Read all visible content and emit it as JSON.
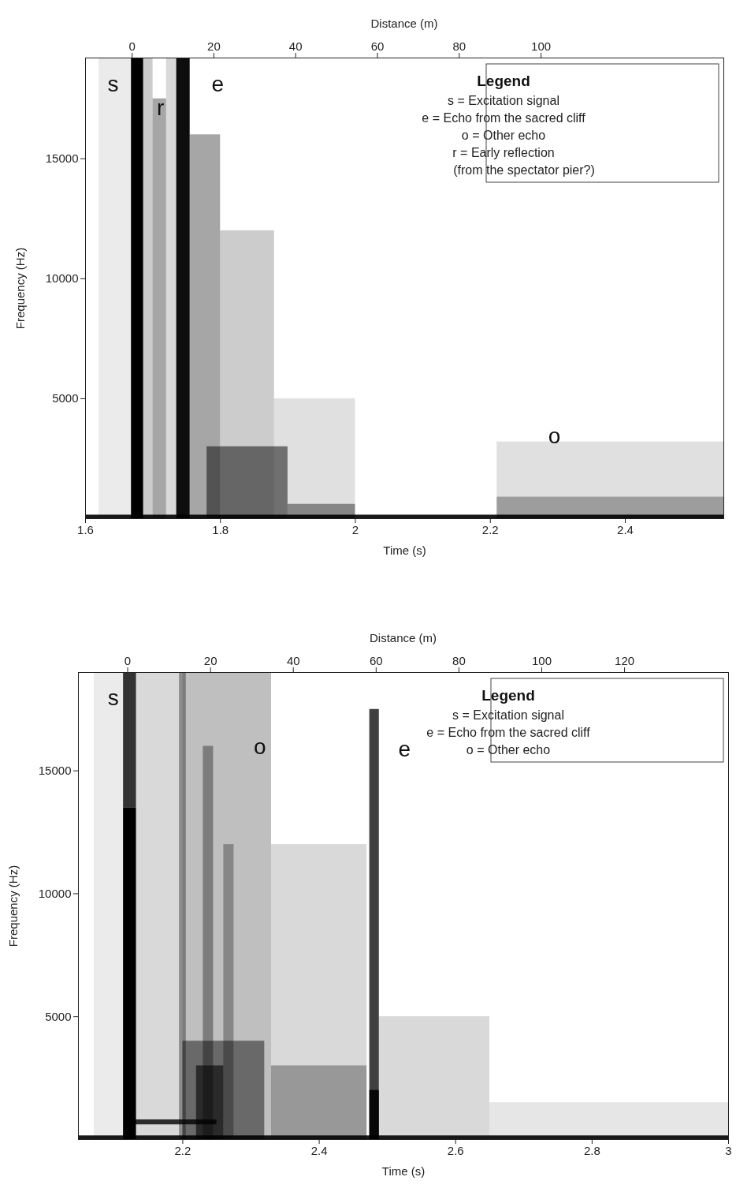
{
  "chart_data": [
    {
      "type": "spectrogram",
      "xlabel": "Time (s)",
      "ylabel": "Frequency (Hz)",
      "x2label": "Distance (m)",
      "xlim": [
        1.6,
        2.546
      ],
      "xticks": [
        1.6,
        1.8,
        2,
        2.2,
        2.4
      ],
      "ylim": [
        0,
        19200
      ],
      "yticks": [
        5000,
        10000,
        15000
      ],
      "x2lim": [
        -11.4,
        144.7
      ],
      "x2ticks": [
        0,
        20,
        40,
        60,
        80,
        100
      ],
      "grid": false,
      "legend": "top-right",
      "legend_title": "Legend",
      "legend_items": [
        [
          "s = Excitation signal"
        ],
        [
          "e = Echo from the sacred cliff"
        ],
        [
          "o = Other echo"
        ],
        [
          "r = Early reflection",
          "(from the spectator pier?)"
        ]
      ],
      "annotations": [
        {
          "text": "s",
          "x": 1.641,
          "y": 18100
        },
        {
          "text": "r",
          "x": 1.711,
          "y": 17100
        },
        {
          "text": "e",
          "x": 1.796,
          "y": 18100
        },
        {
          "text": "o",
          "x": 2.295,
          "y": 3450
        }
      ],
      "intensity_range": [
        0,
        1
      ],
      "cells": [
        {
          "t0": 1.62,
          "t1": 1.668,
          "f0": 0,
          "f1": 19200,
          "level": 0.08
        },
        {
          "t0": 1.668,
          "t1": 1.686,
          "f0": 0,
          "f1": 19200,
          "level": 1
        },
        {
          "t0": 1.686,
          "t1": 1.7,
          "f0": 0,
          "f1": 19200,
          "level": 0.2
        },
        {
          "t0": 1.7,
          "t1": 1.72,
          "f0": 0,
          "f1": 17500,
          "level": 0.35
        },
        {
          "t0": 1.72,
          "t1": 1.735,
          "f0": 0,
          "f1": 19200,
          "level": 0.15
        },
        {
          "t0": 1.735,
          "t1": 1.755,
          "f0": 0,
          "f1": 19200,
          "level": 0.95
        },
        {
          "t0": 1.755,
          "t1": 1.8,
          "f0": 0,
          "f1": 16000,
          "level": 0.35
        },
        {
          "t0": 1.8,
          "t1": 1.88,
          "f0": 0,
          "f1": 12000,
          "level": 0.2
        },
        {
          "t0": 1.78,
          "t1": 1.9,
          "f0": 0,
          "f1": 3000,
          "level": 0.5
        },
        {
          "t0": 1.88,
          "t1": 2.0,
          "f0": 0,
          "f1": 5000,
          "level": 0.12
        },
        {
          "t0": 1.9,
          "t1": 2.0,
          "f0": 0,
          "f1": 600,
          "level": 0.4
        },
        {
          "t0": 2.21,
          "t1": 2.546,
          "f0": 0,
          "f1": 3200,
          "level": 0.12
        },
        {
          "t0": 2.21,
          "t1": 2.546,
          "f0": 0,
          "f1": 900,
          "level": 0.3
        },
        {
          "t0": 1.6,
          "t1": 2.546,
          "f0": 0,
          "f1": 150,
          "level": 0.9
        }
      ]
    },
    {
      "type": "spectrogram",
      "xlabel": "Time (s)",
      "ylabel": "Frequency (Hz)",
      "x2label": "Distance (m)",
      "xlim": [
        2.047,
        3
      ],
      "xticks": [
        2.2,
        2.4,
        2.6,
        2.8,
        3
      ],
      "ylim": [
        0,
        19000
      ],
      "yticks": [
        5000,
        10000,
        15000
      ],
      "x2lim": [
        -11.9,
        145.1
      ],
      "x2ticks": [
        0,
        20,
        40,
        60,
        80,
        100,
        120
      ],
      "grid": false,
      "legend": "top-right",
      "legend_title": "Legend",
      "legend_items": [
        [
          "s = Excitation signal"
        ],
        [
          "e = Echo from the sacred cliff"
        ],
        [
          "o = Other echo"
        ]
      ],
      "annotations": [
        {
          "text": "s",
          "x": 2.098,
          "y": 17960
        },
        {
          "text": "o",
          "x": 2.313,
          "y": 15960
        },
        {
          "text": "e",
          "x": 2.525,
          "y": 15870
        }
      ],
      "intensity_range": [
        0,
        1
      ],
      "cells": [
        {
          "t0": 2.07,
          "t1": 2.113,
          "f0": 0,
          "f1": 19000,
          "level": 0.08
        },
        {
          "t0": 2.113,
          "t1": 2.132,
          "f0": 0,
          "f1": 13500,
          "level": 1
        },
        {
          "t0": 2.113,
          "t1": 2.132,
          "f0": 13500,
          "f1": 19000,
          "level": 0.8
        },
        {
          "t0": 2.132,
          "t1": 2.2,
          "f0": 0,
          "f1": 19000,
          "level": 0.15
        },
        {
          "t0": 2.2,
          "t1": 2.33,
          "f0": 0,
          "f1": 19000,
          "level": 0.25
        },
        {
          "t0": 2.195,
          "t1": 2.205,
          "f0": 0,
          "f1": 19000,
          "level": 0.35
        },
        {
          "t0": 2.23,
          "t1": 2.245,
          "f0": 0,
          "f1": 16000,
          "level": 0.35
        },
        {
          "t0": 2.26,
          "t1": 2.275,
          "f0": 0,
          "f1": 12000,
          "level": 0.3
        },
        {
          "t0": 2.2,
          "t1": 2.32,
          "f0": 0,
          "f1": 4000,
          "level": 0.45
        },
        {
          "t0": 2.22,
          "t1": 2.26,
          "f0": 0,
          "f1": 3000,
          "level": 0.6
        },
        {
          "t0": 2.33,
          "t1": 2.47,
          "f0": 0,
          "f1": 12000,
          "level": 0.15
        },
        {
          "t0": 2.33,
          "t1": 2.47,
          "f0": 0,
          "f1": 3000,
          "level": 0.3
        },
        {
          "t0": 2.474,
          "t1": 2.488,
          "f0": 0,
          "f1": 17500,
          "level": 0.75
        },
        {
          "t0": 2.474,
          "t1": 2.488,
          "f0": 0,
          "f1": 2000,
          "level": 0.9
        },
        {
          "t0": 2.488,
          "t1": 2.65,
          "f0": 0,
          "f1": 5000,
          "level": 0.15
        },
        {
          "t0": 2.65,
          "t1": 3,
          "f0": 0,
          "f1": 1500,
          "level": 0.1
        },
        {
          "t0": 2.13,
          "t1": 2.25,
          "f0": 600,
          "f1": 800,
          "level": 0.8
        },
        {
          "t0": 2.047,
          "t1": 3,
          "f0": 0,
          "f1": 150,
          "level": 0.9
        }
      ]
    }
  ]
}
